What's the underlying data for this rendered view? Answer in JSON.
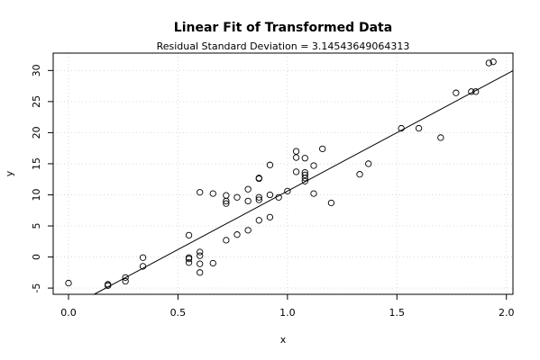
{
  "chart_data": {
    "type": "scatter",
    "title": "Linear Fit of Transformed Data",
    "subtitle": "Residual Standard Deviation =  3.14543649064313",
    "xlabel": "x",
    "ylabel": "y",
    "xlim": [
      -0.07,
      2.03
    ],
    "ylim": [
      -6.0,
      32.8
    ],
    "xticks": [
      0.0,
      0.5,
      1.0,
      1.5,
      2.0
    ],
    "xtick_labels": [
      "0.0",
      "0.5",
      "1.0",
      "1.5",
      "2.0"
    ],
    "yticks": [
      -5,
      0,
      5,
      10,
      15,
      20,
      25,
      30
    ],
    "ytick_labels": [
      "-5",
      "0",
      "5",
      "10",
      "15",
      "20",
      "25",
      "30"
    ],
    "grid": true,
    "fit_line": {
      "intercept": -8.2,
      "slope": 18.8
    },
    "points": [
      [
        0.0,
        -4.2
      ],
      [
        0.18,
        -4.4
      ],
      [
        0.18,
        -4.6
      ],
      [
        0.26,
        -3.3
      ],
      [
        0.26,
        -3.9
      ],
      [
        0.34,
        -0.1
      ],
      [
        0.34,
        -1.5
      ],
      [
        0.55,
        3.5
      ],
      [
        0.55,
        -0.1
      ],
      [
        0.55,
        -0.3
      ],
      [
        0.55,
        -0.9
      ],
      [
        0.6,
        10.4
      ],
      [
        0.6,
        0.8
      ],
      [
        0.6,
        0.2
      ],
      [
        0.6,
        -1.1
      ],
      [
        0.6,
        -2.5
      ],
      [
        0.66,
        10.2
      ],
      [
        0.66,
        -1.0
      ],
      [
        0.72,
        9.9
      ],
      [
        0.72,
        9.0
      ],
      [
        0.72,
        8.6
      ],
      [
        0.72,
        2.7
      ],
      [
        0.77,
        9.6
      ],
      [
        0.77,
        3.6
      ],
      [
        0.82,
        10.9
      ],
      [
        0.82,
        9.0
      ],
      [
        0.82,
        4.3
      ],
      [
        0.87,
        12.7
      ],
      [
        0.87,
        12.6
      ],
      [
        0.87,
        9.6
      ],
      [
        0.87,
        9.2
      ],
      [
        0.87,
        5.9
      ],
      [
        0.92,
        14.8
      ],
      [
        0.92,
        10.0
      ],
      [
        0.92,
        6.4
      ],
      [
        0.96,
        9.6
      ],
      [
        1.0,
        10.6
      ],
      [
        1.04,
        17.0
      ],
      [
        1.04,
        16.0
      ],
      [
        1.04,
        13.7
      ],
      [
        1.08,
        15.9
      ],
      [
        1.08,
        13.6
      ],
      [
        1.08,
        13.2
      ],
      [
        1.08,
        12.7
      ],
      [
        1.08,
        12.2
      ],
      [
        1.12,
        14.7
      ],
      [
        1.12,
        10.2
      ],
      [
        1.16,
        17.4
      ],
      [
        1.2,
        8.7
      ],
      [
        1.33,
        13.3
      ],
      [
        1.37,
        15.0
      ],
      [
        1.52,
        20.7
      ],
      [
        1.6,
        20.7
      ],
      [
        1.7,
        19.2
      ],
      [
        1.77,
        26.4
      ],
      [
        1.84,
        26.6
      ],
      [
        1.86,
        26.6
      ],
      [
        1.92,
        31.2
      ],
      [
        1.94,
        31.4
      ]
    ]
  }
}
